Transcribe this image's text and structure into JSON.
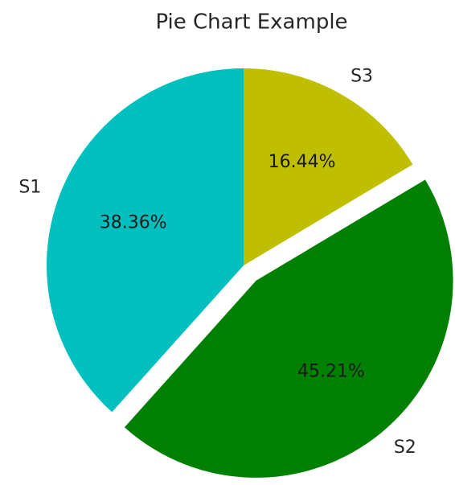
{
  "chart_data": {
    "type": "pie",
    "title": "Pie Chart Example",
    "categories": [
      "S1",
      "S2",
      "S3"
    ],
    "values": [
      38.36,
      45.21,
      16.44
    ],
    "value_labels": [
      "38.36%",
      "45.21%",
      "16.44%"
    ],
    "colors": [
      "#00bfbf",
      "#008000",
      "#bfbf00"
    ],
    "explode": [
      0,
      0.1,
      0
    ],
    "startangle": 90
  }
}
